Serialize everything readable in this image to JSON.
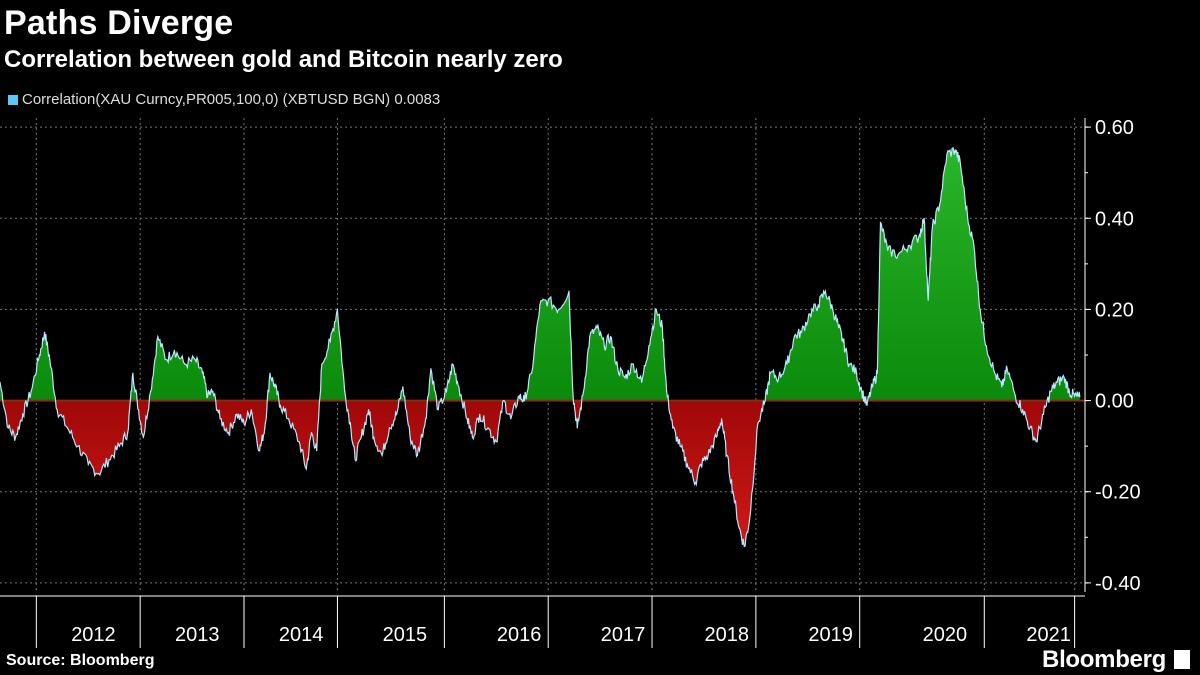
{
  "header": {
    "title": "Paths Diverge",
    "subtitle": "Correlation between gold and Bitcoin nearly zero"
  },
  "legend": {
    "label": "Correlation(XAU Curncy,PR005,100,0) (XBTUSD BGN) 0.0083",
    "color": "#5bc8f5"
  },
  "footer": {
    "source": "Source: Bloomberg",
    "brand": "Bloomberg"
  },
  "colors": {
    "positive_fill": "#0b8a0b",
    "negative_fill": "#a00808",
    "line": "#b9e6ff",
    "grid": "#777777",
    "background": "#000000"
  },
  "chart_data": {
    "type": "area",
    "title": "Paths Diverge",
    "subtitle": "Correlation between gold and Bitcoin nearly zero",
    "series_name": "Correlation(XAU Curncy,PR005,100,0) (XBTUSD BGN)",
    "last_value": 0.0083,
    "ylim": [
      -0.42,
      0.62
    ],
    "xlim": [
      2011.5,
      2021.95
    ],
    "yticks": [
      0.6,
      0.4,
      0.2,
      0.0,
      -0.2,
      -0.4
    ],
    "ytick_labels": [
      "0.60",
      "0.40",
      "0.20",
      "0.00",
      "-0.20",
      "-0.40"
    ],
    "x_year_labels": [
      "2012",
      "2013",
      "2014",
      "2015",
      "2016",
      "2017",
      "2018",
      "2019",
      "2020",
      "2021"
    ],
    "x_year_centers": [
      2012.4,
      2013.4,
      2014.4,
      2015.4,
      2016.5,
      2017.5,
      2018.5,
      2019.5,
      2020.6,
      2021.6
    ],
    "x_boundaries": [
      2011.85,
      2012.85,
      2013.85,
      2014.75,
      2015.78,
      2016.78,
      2017.78,
      2018.78,
      2019.78,
      2020.98,
      2021.85
    ],
    "grid": true,
    "points": [
      [
        2011.5,
        0.04
      ],
      [
        2011.58,
        -0.06
      ],
      [
        2011.65,
        -0.08
      ],
      [
        2011.72,
        -0.03
      ],
      [
        2011.8,
        0.02
      ],
      [
        2011.88,
        0.1
      ],
      [
        2011.93,
        0.15
      ],
      [
        2011.98,
        0.09
      ],
      [
        2012.05,
        -0.02
      ],
      [
        2012.15,
        -0.06
      ],
      [
        2012.25,
        -0.1
      ],
      [
        2012.35,
        -0.14
      ],
      [
        2012.45,
        -0.16
      ],
      [
        2012.55,
        -0.13
      ],
      [
        2012.65,
        -0.1
      ],
      [
        2012.73,
        -0.07
      ],
      [
        2012.78,
        0.06
      ],
      [
        2012.82,
        0.0
      ],
      [
        2012.88,
        -0.08
      ],
      [
        2012.95,
        0.02
      ],
      [
        2013.02,
        0.14
      ],
      [
        2013.1,
        0.09
      ],
      [
        2013.18,
        0.11
      ],
      [
        2013.28,
        0.08
      ],
      [
        2013.38,
        0.09
      ],
      [
        2013.45,
        0.06
      ],
      [
        2013.5,
        0.01
      ],
      [
        2013.55,
        0.02
      ],
      [
        2013.62,
        -0.04
      ],
      [
        2013.7,
        -0.07
      ],
      [
        2013.78,
        -0.03
      ],
      [
        2013.85,
        -0.05
      ],
      [
        2013.92,
        -0.02
      ],
      [
        2014.0,
        -0.11
      ],
      [
        2014.05,
        -0.06
      ],
      [
        2014.1,
        0.06
      ],
      [
        2014.15,
        0.03
      ],
      [
        2014.2,
        -0.01
      ],
      [
        2014.28,
        -0.04
      ],
      [
        2014.38,
        -0.09
      ],
      [
        2014.45,
        -0.15
      ],
      [
        2014.5,
        -0.07
      ],
      [
        2014.55,
        -0.11
      ],
      [
        2014.6,
        0.08
      ],
      [
        2014.68,
        0.13
      ],
      [
        2014.75,
        0.2
      ],
      [
        2014.82,
        0.02
      ],
      [
        2014.88,
        -0.06
      ],
      [
        2014.92,
        -0.13
      ],
      [
        2014.98,
        -0.08
      ],
      [
        2015.05,
        -0.02
      ],
      [
        2015.1,
        -0.08
      ],
      [
        2015.18,
        -0.12
      ],
      [
        2015.25,
        -0.06
      ],
      [
        2015.32,
        -0.03
      ],
      [
        2015.38,
        0.03
      ],
      [
        2015.45,
        -0.08
      ],
      [
        2015.52,
        -0.12
      ],
      [
        2015.6,
        -0.04
      ],
      [
        2015.65,
        0.07
      ],
      [
        2015.72,
        -0.02
      ],
      [
        2015.8,
        0.02
      ],
      [
        2015.86,
        0.08
      ],
      [
        2015.92,
        0.03
      ],
      [
        2016.0,
        -0.04
      ],
      [
        2016.05,
        -0.08
      ],
      [
        2016.12,
        -0.03
      ],
      [
        2016.2,
        -0.06
      ],
      [
        2016.28,
        -0.09
      ],
      [
        2016.35,
        0.0
      ],
      [
        2016.42,
        -0.04
      ],
      [
        2016.5,
        0.01
      ],
      [
        2016.55,
        0.0
      ],
      [
        2016.62,
        0.06
      ],
      [
        2016.7,
        0.21
      ],
      [
        2016.78,
        0.22
      ],
      [
        2016.88,
        0.2
      ],
      [
        2016.98,
        0.24
      ],
      [
        2017.02,
        0.01
      ],
      [
        2017.06,
        -0.06
      ],
      [
        2017.12,
        0.02
      ],
      [
        2017.18,
        0.14
      ],
      [
        2017.25,
        0.16
      ],
      [
        2017.32,
        0.12
      ],
      [
        2017.38,
        0.14
      ],
      [
        2017.45,
        0.07
      ],
      [
        2017.52,
        0.05
      ],
      [
        2017.6,
        0.08
      ],
      [
        2017.68,
        0.04
      ],
      [
        2017.75,
        0.12
      ],
      [
        2017.82,
        0.2
      ],
      [
        2017.88,
        0.16
      ],
      [
        2017.92,
        0.02
      ],
      [
        2017.98,
        -0.06
      ],
      [
        2018.05,
        -0.1
      ],
      [
        2018.12,
        -0.14
      ],
      [
        2018.2,
        -0.18
      ],
      [
        2018.25,
        -0.14
      ],
      [
        2018.32,
        -0.12
      ],
      [
        2018.4,
        -0.08
      ],
      [
        2018.45,
        -0.04
      ],
      [
        2018.5,
        -0.12
      ],
      [
        2018.56,
        -0.2
      ],
      [
        2018.62,
        -0.28
      ],
      [
        2018.67,
        -0.32
      ],
      [
        2018.72,
        -0.26
      ],
      [
        2018.8,
        -0.05
      ],
      [
        2018.87,
        0.0
      ],
      [
        2018.92,
        0.06
      ],
      [
        2019.0,
        0.05
      ],
      [
        2019.08,
        0.08
      ],
      [
        2019.15,
        0.14
      ],
      [
        2019.22,
        0.15
      ],
      [
        2019.3,
        0.19
      ],
      [
        2019.38,
        0.21
      ],
      [
        2019.45,
        0.24
      ],
      [
        2019.52,
        0.2
      ],
      [
        2019.58,
        0.16
      ],
      [
        2019.62,
        0.13
      ],
      [
        2019.68,
        0.08
      ],
      [
        2019.75,
        0.06
      ],
      [
        2019.8,
        0.02
      ],
      [
        2019.85,
        -0.01
      ],
      [
        2019.9,
        0.03
      ],
      [
        2019.95,
        0.06
      ],
      [
        2019.98,
        0.39
      ],
      [
        2020.05,
        0.33
      ],
      [
        2020.15,
        0.32
      ],
      [
        2020.25,
        0.34
      ],
      [
        2020.35,
        0.36
      ],
      [
        2020.4,
        0.4
      ],
      [
        2020.44,
        0.22
      ],
      [
        2020.48,
        0.38
      ],
      [
        2020.55,
        0.43
      ],
      [
        2020.62,
        0.54
      ],
      [
        2020.7,
        0.55
      ],
      [
        2020.75,
        0.52
      ],
      [
        2020.82,
        0.4
      ],
      [
        2020.88,
        0.34
      ],
      [
        2020.94,
        0.2
      ],
      [
        2021.0,
        0.12
      ],
      [
        2021.08,
        0.06
      ],
      [
        2021.15,
        0.03
      ],
      [
        2021.2,
        0.07
      ],
      [
        2021.28,
        0.01
      ],
      [
        2021.35,
        -0.02
      ],
      [
        2021.42,
        -0.06
      ],
      [
        2021.48,
        -0.09
      ],
      [
        2021.55,
        -0.03
      ],
      [
        2021.62,
        0.02
      ],
      [
        2021.68,
        0.04
      ],
      [
        2021.75,
        0.05
      ],
      [
        2021.8,
        0.02
      ],
      [
        2021.85,
        0.01
      ],
      [
        2021.9,
        0.0083
      ]
    ]
  }
}
